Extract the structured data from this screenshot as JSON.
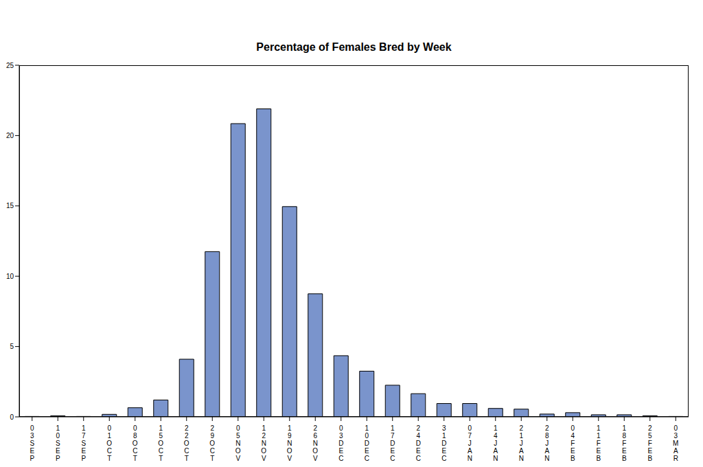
{
  "chart_data": {
    "type": "bar",
    "title": "Percentage of Females Bred by Week",
    "categories": [
      "03SEP",
      "10SEP",
      "17SEP",
      "01OCT",
      "08OCT",
      "15OCT",
      "22OCT",
      "29OCT",
      "05NOV",
      "12NOV",
      "19NOV",
      "26NOV",
      "03DEC",
      "10DEC",
      "17DEC",
      "24DEC",
      "31DEC",
      "07JAN",
      "14JAN",
      "21JAN",
      "28JAN",
      "04FEB",
      "11FEB",
      "18FEB",
      "25FEB",
      "03MAR"
    ],
    "values": [
      0.03,
      0.08,
      0.03,
      0.18,
      0.65,
      1.2,
      4.1,
      11.75,
      20.85,
      21.9,
      14.95,
      8.75,
      4.35,
      3.25,
      2.25,
      1.65,
      0.95,
      0.95,
      0.6,
      0.55,
      0.2,
      0.3,
      0.15,
      0.15,
      0.08,
      0.03
    ],
    "color": "#7a94cc",
    "ylim": [
      0,
      25
    ],
    "yticks": [
      0,
      5,
      10,
      15,
      20,
      25
    ],
    "grid": false
  }
}
